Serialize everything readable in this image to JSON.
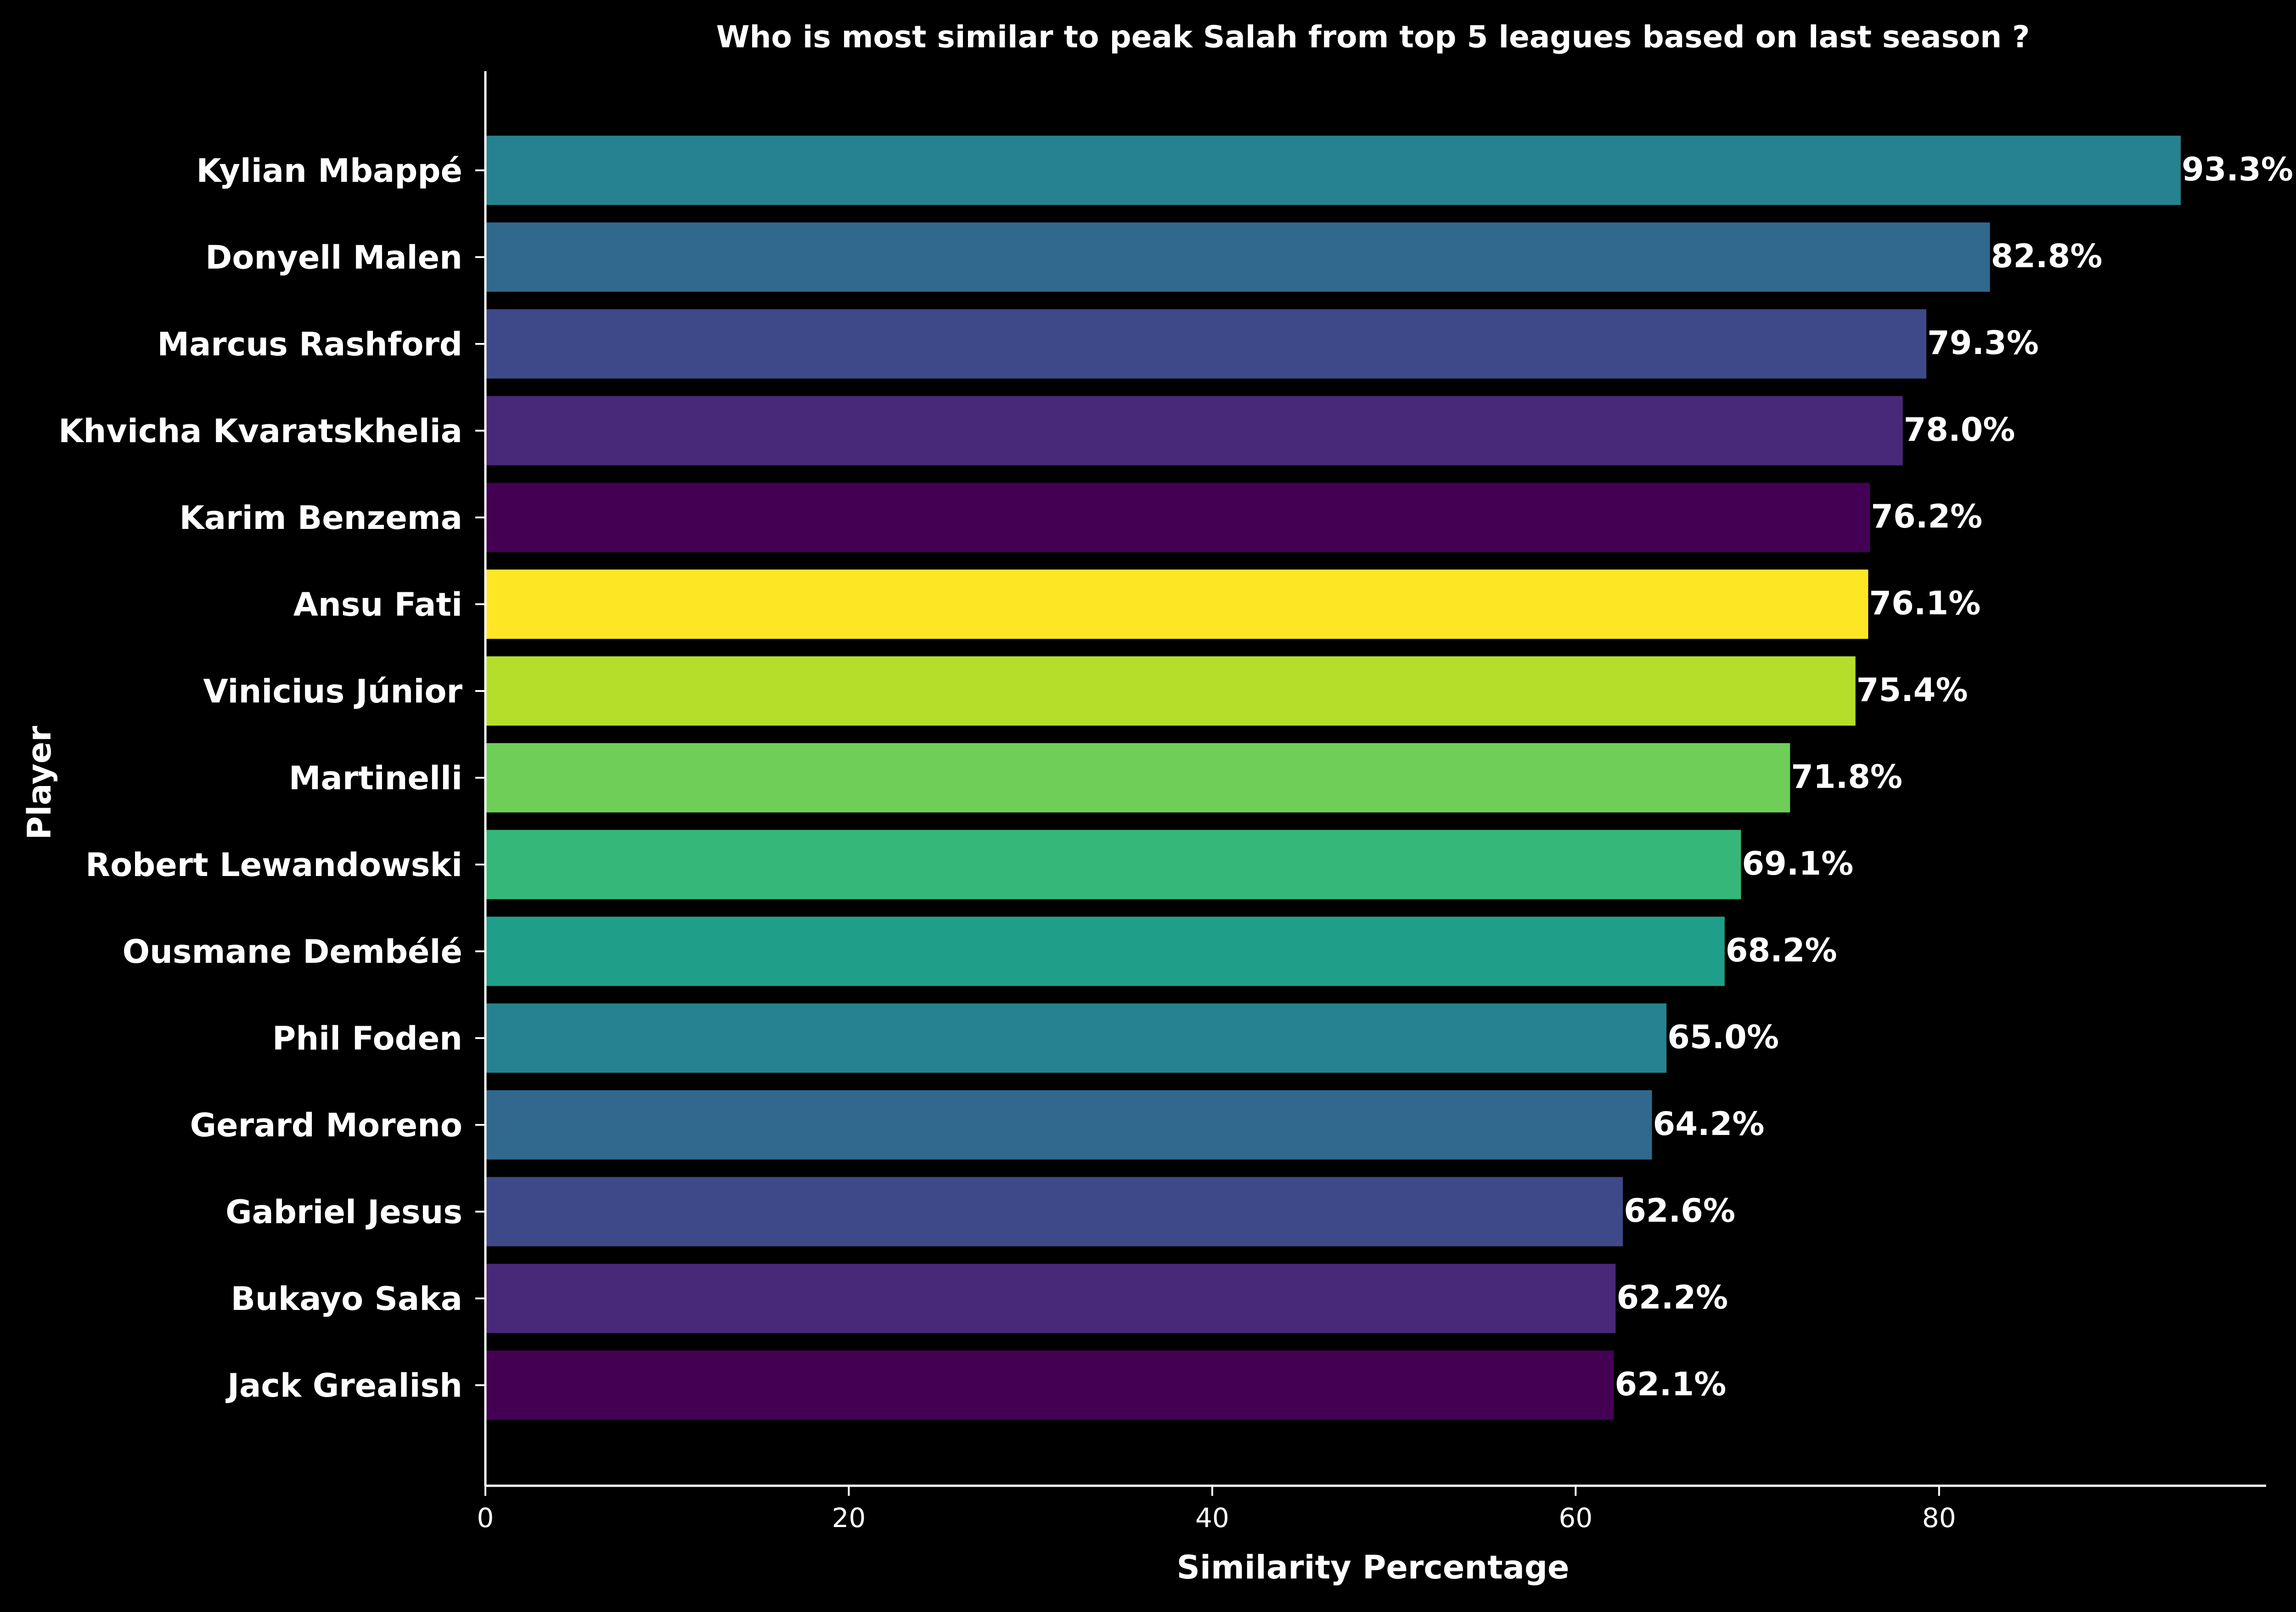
{
  "chart_data": {
    "type": "bar",
    "orientation": "horizontal",
    "title": "Who is most similar to peak Salah from top 5 leagues based on last season ?",
    "xlabel": "Similarity Percentage",
    "ylabel": "Player",
    "xlim": [
      0,
      98
    ],
    "xticks": [
      0,
      20,
      40,
      60,
      80
    ],
    "grid": false,
    "legend": "none",
    "value_suffix": "%",
    "background": "#000000",
    "text_color": "#ffffff",
    "categories": [
      "Kylian Mbappé",
      "Donyell Malen",
      "Marcus Rashford",
      "Khvicha Kvaratskhelia",
      "Karim Benzema",
      "Ansu Fati",
      "Vinicius Júnior",
      "Martinelli",
      "Robert Lewandowski",
      "Ousmane Dembélé",
      "Phil Foden",
      "Gerard Moreno",
      "Gabriel Jesus",
      "Bukayo Saka",
      "Jack Grealish"
    ],
    "values": [
      93.3,
      82.8,
      79.3,
      78.0,
      76.2,
      76.1,
      75.4,
      71.8,
      69.1,
      68.2,
      65.0,
      64.2,
      62.6,
      62.2,
      62.1
    ],
    "value_labels": [
      "93.3%",
      "82.8%",
      "79.3%",
      "78.0%",
      "76.2%",
      "76.1%",
      "75.4%",
      "71.8%",
      "69.1%",
      "68.2%",
      "65.0%",
      "64.2%",
      "62.6%",
      "62.2%",
      "62.1%"
    ],
    "colors": [
      "#26828e",
      "#31688e",
      "#3e4989",
      "#482878",
      "#440154",
      "#fde725",
      "#b5de2b",
      "#6ece58",
      "#35b779",
      "#1f9e89",
      "#26828e",
      "#31688e",
      "#3e4989",
      "#482878",
      "#440154"
    ]
  }
}
